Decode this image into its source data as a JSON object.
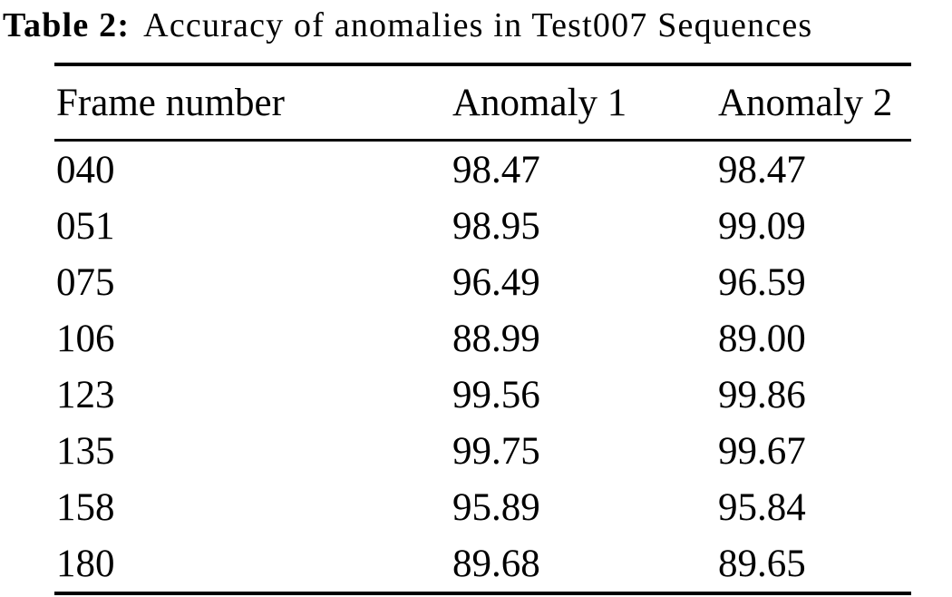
{
  "caption": {
    "label": "Table 2:",
    "text": "Accuracy of anomalies in Test007 Sequences"
  },
  "table": {
    "columns": [
      "Frame number",
      "Anomaly 1",
      "Anomaly 2"
    ],
    "rows": [
      [
        "040",
        "98.47",
        "98.47"
      ],
      [
        "051",
        "98.95",
        "99.09"
      ],
      [
        "075",
        "96.49",
        "96.59"
      ],
      [
        "106",
        "88.99",
        "89.00"
      ],
      [
        "123",
        "99.56",
        "99.86"
      ],
      [
        "135",
        "99.75",
        "99.67"
      ],
      [
        "158",
        "95.89",
        "95.84"
      ],
      [
        "180",
        "89.68",
        "89.65"
      ]
    ]
  },
  "colors": {
    "text": "#000000",
    "background": "#ffffff",
    "rule": "#000000"
  }
}
